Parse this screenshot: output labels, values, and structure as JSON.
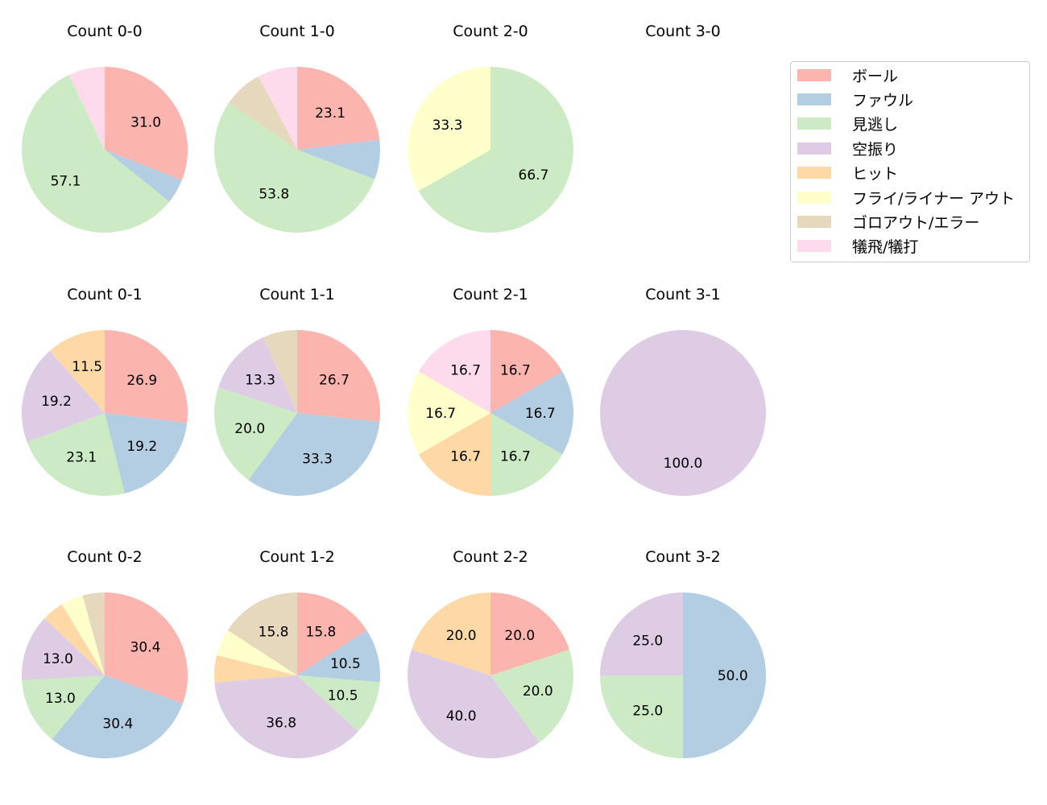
{
  "legend": {
    "items": [
      {
        "label": "ボール",
        "color": "#fbb4ae"
      },
      {
        "label": "ファウル",
        "color": "#b3cde3"
      },
      {
        "label": "見逃し",
        "color": "#ccebc5"
      },
      {
        "label": "空振り",
        "color": "#decbe4"
      },
      {
        "label": "ヒット",
        "color": "#fed9a6"
      },
      {
        "label": "フライ/ライナー アウト",
        "color": "#ffffcc"
      },
      {
        "label": "ゴロアウト/エラー",
        "color": "#e5d8bd"
      },
      {
        "label": "犠飛/犠打",
        "color": "#fddaec"
      }
    ]
  },
  "chart_data": [
    {
      "type": "pie",
      "title": "Count 0-0",
      "categories": [
        "ボール",
        "ファウル",
        "見逃し",
        "犠飛/犠打"
      ],
      "values": [
        31.0,
        4.8,
        57.1,
        7.1
      ],
      "labels": [
        "31.0",
        "",
        "57.1",
        ""
      ]
    },
    {
      "type": "pie",
      "title": "Count 1-0",
      "categories": [
        "ボール",
        "ファウル",
        "見逃し",
        "ゴロアウト/エラー",
        "犠飛/犠打"
      ],
      "values": [
        23.1,
        7.7,
        53.8,
        7.7,
        7.7
      ],
      "labels": [
        "23.1",
        "",
        "53.8",
        "",
        ""
      ]
    },
    {
      "type": "pie",
      "title": "Count 2-0",
      "categories": [
        "見逃し",
        "フライ/ライナー アウト"
      ],
      "values": [
        66.7,
        33.3
      ],
      "labels": [
        "66.7",
        "33.3"
      ]
    },
    {
      "type": "pie",
      "title": "Count 3-0",
      "categories": [],
      "values": [],
      "labels": []
    },
    {
      "type": "pie",
      "title": "Count 0-1",
      "categories": [
        "ボール",
        "ファウル",
        "見逃し",
        "空振り",
        "ヒット"
      ],
      "values": [
        26.9,
        19.2,
        23.1,
        19.2,
        11.5
      ],
      "labels": [
        "26.9",
        "19.2",
        "23.1",
        "19.2",
        "11.5"
      ]
    },
    {
      "type": "pie",
      "title": "Count 1-1",
      "categories": [
        "ボール",
        "ファウル",
        "見逃し",
        "空振り",
        "ゴロアウト/エラー"
      ],
      "values": [
        26.7,
        33.3,
        20.0,
        13.3,
        6.7
      ],
      "labels": [
        "26.7",
        "33.3",
        "20.0",
        "13.3",
        ""
      ]
    },
    {
      "type": "pie",
      "title": "Count 2-1",
      "categories": [
        "ボール",
        "ファウル",
        "見逃し",
        "ヒット",
        "フライ/ライナー アウト",
        "犠飛/犠打"
      ],
      "values": [
        16.7,
        16.7,
        16.7,
        16.7,
        16.7,
        16.7
      ],
      "labels": [
        "16.7",
        "16.7",
        "16.7",
        "16.7",
        "16.7",
        "16.7"
      ]
    },
    {
      "type": "pie",
      "title": "Count 3-1",
      "categories": [
        "空振り"
      ],
      "values": [
        100.0
      ],
      "labels": [
        "100.0"
      ]
    },
    {
      "type": "pie",
      "title": "Count 0-2",
      "categories": [
        "ボール",
        "ファウル",
        "見逃し",
        "空振り",
        "ヒット",
        "フライ/ライナー アウト",
        "ゴロアウト/エラー"
      ],
      "values": [
        30.4,
        30.4,
        13.0,
        13.0,
        4.3,
        4.3,
        4.3
      ],
      "labels": [
        "30.4",
        "30.4",
        "13.0",
        "13.0",
        "",
        "",
        ""
      ]
    },
    {
      "type": "pie",
      "title": "Count 1-2",
      "categories": [
        "ボール",
        "ファウル",
        "見逃し",
        "空振り",
        "ヒット",
        "フライ/ライナー アウト",
        "ゴロアウト/エラー"
      ],
      "values": [
        15.8,
        10.5,
        10.5,
        36.8,
        5.3,
        5.3,
        15.8
      ],
      "labels": [
        "15.8",
        "10.5",
        "10.5",
        "36.8",
        "",
        "",
        "15.8"
      ]
    },
    {
      "type": "pie",
      "title": "Count 2-2",
      "categories": [
        "ボール",
        "見逃し",
        "空振り",
        "ヒット"
      ],
      "values": [
        20.0,
        20.0,
        40.0,
        20.0
      ],
      "labels": [
        "20.0",
        "20.0",
        "40.0",
        "20.0"
      ]
    },
    {
      "type": "pie",
      "title": "Count 3-2",
      "categories": [
        "ファウル",
        "見逃し",
        "空振り"
      ],
      "values": [
        50.0,
        25.0,
        25.0
      ],
      "labels": [
        "50.0",
        "25.0",
        "25.0"
      ]
    }
  ]
}
